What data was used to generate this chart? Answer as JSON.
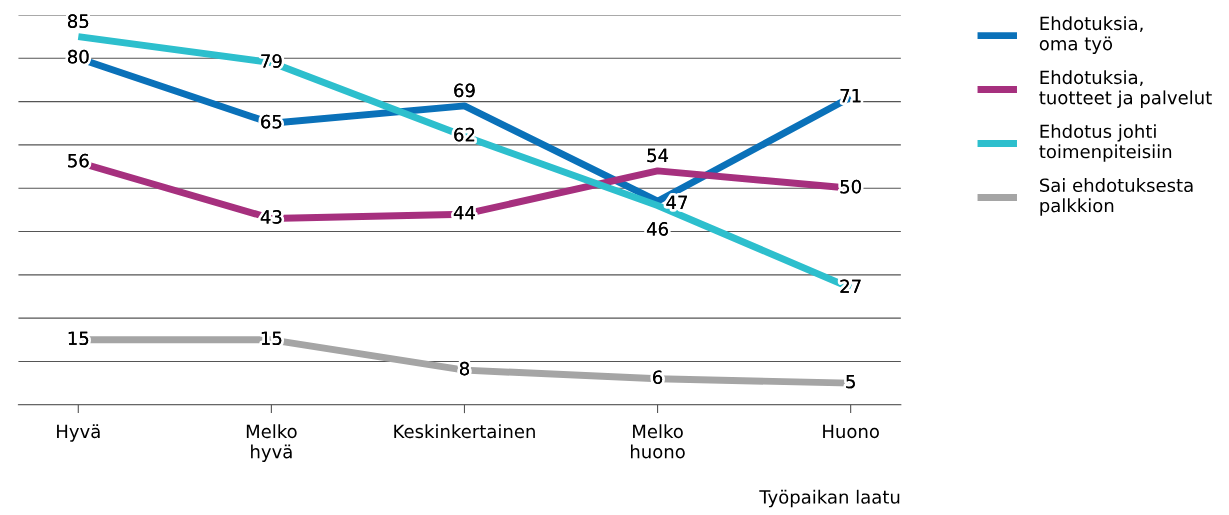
{
  "chart_data": {
    "type": "line",
    "xlabel": "Työpaikan laatu",
    "categories": [
      "Hyvä",
      "Melko\nhyvä",
      "Keskinkertainen",
      "Melko\nhuono",
      "Huono"
    ],
    "series": [
      {
        "name": "Ehdotuksia,\noma työ",
        "color": "#0a71b9",
        "values": [
          80,
          65,
          69,
          47,
          71
        ]
      },
      {
        "name": "Ehdotuksia,\ntuotteet ja palvelut",
        "color": "#a6307e",
        "values": [
          56,
          43,
          44,
          54,
          50
        ]
      },
      {
        "name": "Ehdotus johti\ntoimenpiteisiin",
        "color": "#2dbfcd",
        "values": [
          85,
          79,
          62,
          46,
          27
        ]
      },
      {
        "name": "Sai ehdotuksesta\npalkkion",
        "color": "#a5a5a5",
        "values": [
          15,
          15,
          8,
          6,
          5
        ]
      }
    ],
    "ylim": [
      0,
      90
    ],
    "yticks": [
      {
        "value": 0,
        "label": null
      },
      {
        "value": 10,
        "label": null
      },
      {
        "value": 20,
        "label": null
      },
      {
        "value": 30,
        "label": null
      },
      {
        "value": 40,
        "label": null
      },
      {
        "value": 50,
        "label": null
      },
      {
        "value": 60,
        "label": null
      },
      {
        "value": 70,
        "label": null
      },
      {
        "value": 80,
        "label": null
      },
      {
        "value": 90,
        "label": null
      }
    ],
    "tick_labels": "x",
    "grid": "y",
    "legend": "top right",
    "data_labels": true,
    "marker": "none",
    "line_style": "solid"
  }
}
